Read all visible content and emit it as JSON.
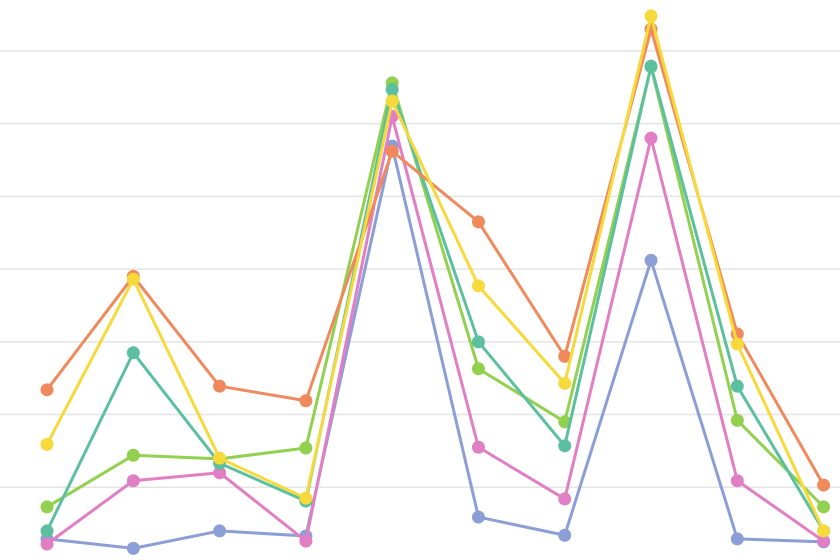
{
  "chart_data": {
    "type": "line",
    "x": [
      0,
      1,
      2,
      3,
      4,
      5,
      6,
      7,
      8,
      9
    ],
    "xlim": [
      -0.545,
      9.19
    ],
    "ylim": [
      0,
      7.7
    ],
    "yticks": [
      1,
      2,
      3,
      4,
      5,
      6,
      7
    ],
    "grid": true,
    "series": [
      {
        "color": "#8b9fd6",
        "values": [
          0.29,
          0.16,
          0.4,
          0.33,
          5.69,
          0.59,
          0.34,
          4.12,
          0.29,
          0.25
        ]
      },
      {
        "color": "#e07fc4",
        "values": [
          0.22,
          1.09,
          1.2,
          0.26,
          6.1,
          1.55,
          0.84,
          5.8,
          1.09,
          0.26
        ]
      },
      {
        "color": "#92d050",
        "values": [
          0.73,
          1.44,
          1.39,
          1.54,
          6.56,
          2.63,
          1.9,
          6.78,
          1.92,
          0.73
        ]
      },
      {
        "color": "#5cc0a0",
        "values": [
          0.4,
          2.85,
          1.33,
          0.81,
          6.47,
          3.0,
          1.57,
          6.79,
          2.39,
          0.4
        ]
      },
      {
        "color": "#f08a5d",
        "values": [
          2.34,
          3.9,
          2.39,
          2.19,
          5.62,
          4.65,
          2.8,
          7.3,
          3.11,
          1.03
        ]
      },
      {
        "color": "#f6d93a",
        "values": [
          1.59,
          3.86,
          1.4,
          0.85,
          6.31,
          3.77,
          2.43,
          7.48,
          2.97,
          0.4
        ]
      }
    ]
  }
}
